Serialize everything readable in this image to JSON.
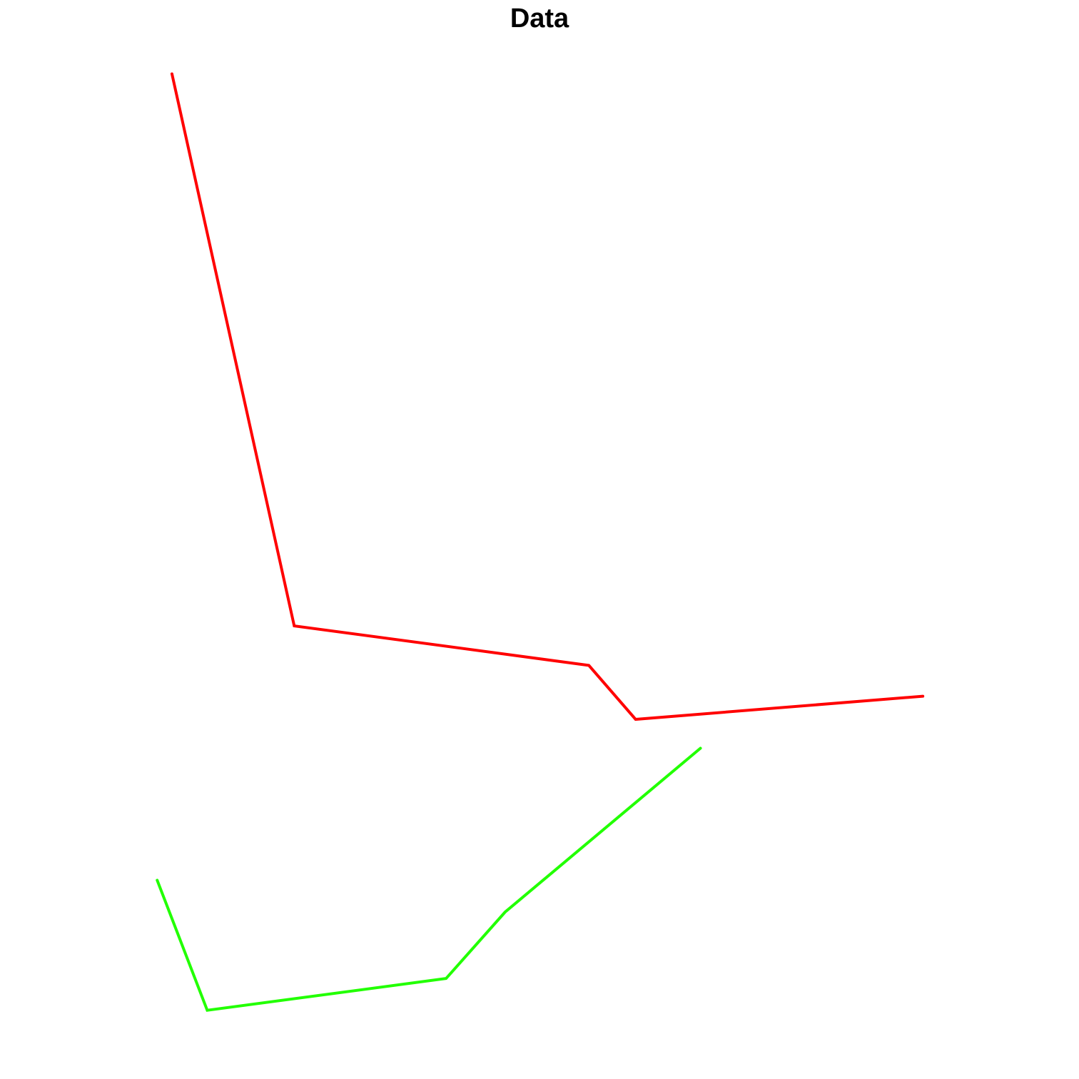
{
  "chart_data": {
    "type": "line",
    "title": "Data",
    "xlim": [
      0,
      100
    ],
    "ylim": [
      0,
      100
    ],
    "series": [
      {
        "color": "#ff0000",
        "x": [
          5.3,
          20.2,
          56.1,
          61.8,
          96.8
        ],
        "values": [
          99.0,
          41.7,
          37.6,
          32.0,
          34.4
        ]
      },
      {
        "color": "#22ff00",
        "x": [
          3.5,
          9.6,
          38.7,
          45.9,
          69.7
        ],
        "values": [
          15.3,
          1.8,
          5.1,
          12.0,
          29.0
        ]
      }
    ]
  }
}
